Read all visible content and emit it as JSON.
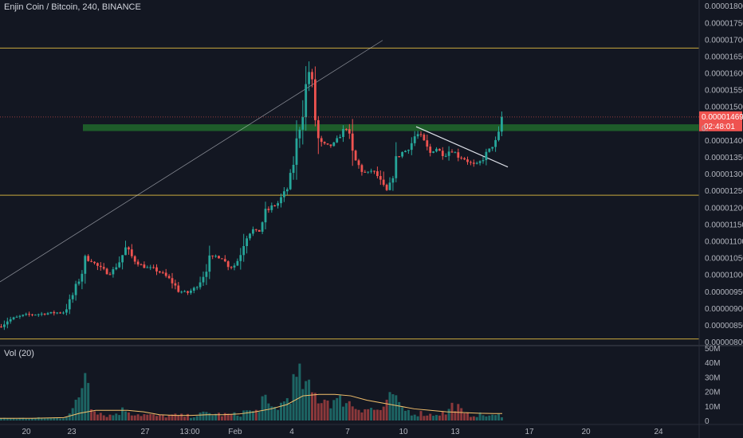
{
  "chart_data": {
    "type": "candlestick",
    "title": "Enjin Coin / Bitcoin, 240, BINANCE",
    "volume_title": "Vol (20)",
    "price_axis": {
      "ticks": [
        "0.00001800",
        "0.00001750",
        "0.00001700",
        "0.00001650",
        "0.00001600",
        "0.00001550",
        "0.00001500",
        "0.00001400",
        "0.00001350",
        "0.00001300",
        "0.00001250",
        "0.00001200",
        "0.00001150",
        "0.00001100",
        "0.00001050",
        "0.00001000",
        "0.00000950",
        "0.00000900",
        "0.00000850",
        "0.00000800"
      ],
      "ylim": [
        7.93e-06,
        1.817e-05
      ]
    },
    "volume_axis": {
      "ticks": [
        {
          "v": 50,
          "t": "50M"
        },
        {
          "v": 40,
          "t": "40M"
        },
        {
          "v": 30,
          "t": "30M"
        },
        {
          "v": 20,
          "t": "20M"
        },
        {
          "v": 10,
          "t": "10M"
        },
        {
          "v": 0,
          "t": "0"
        }
      ],
      "ylim": [
        0,
        50
      ]
    },
    "time_axis": {
      "ticks": [
        "20",
        "23",
        "27",
        "13:00",
        "Feb",
        "4",
        "7",
        "10",
        "13",
        "17",
        "20",
        "24"
      ]
    },
    "current_price_label": "0.00001469",
    "countdown_label": "02:48:01",
    "hidden_price_label": "0.",
    "price_path": [
      [
        0,
        8.45e-06
      ],
      [
        8,
        8.62e-06
      ],
      [
        20,
        8.72e-06
      ],
      [
        32,
        8.8e-06
      ],
      [
        48,
        8.82e-06
      ],
      [
        62,
        8.85e-06
      ],
      [
        80,
        8.88e-06
      ],
      [
        88,
        9.2e-06
      ],
      [
        95,
        9.6e-06
      ],
      [
        102,
        1e-05
      ],
      [
        108,
        1.05e-05
      ],
      [
        115,
        1.04e-05
      ],
      [
        122,
        1.025e-05
      ],
      [
        130,
        1.01e-05
      ],
      [
        140,
        1.005e-05
      ],
      [
        150,
        1.04e-05
      ],
      [
        158,
        1.08e-05
      ],
      [
        166,
        1.05e-05
      ],
      [
        175,
        1.03e-05
      ],
      [
        185,
        1.02e-05
      ],
      [
        195,
        1.015e-05
      ],
      [
        205,
        1e-05
      ],
      [
        215,
        9.8e-06
      ],
      [
        225,
        9.5e-06
      ],
      [
        235,
        9.45e-06
      ],
      [
        245,
        9.6e-06
      ],
      [
        255,
        1e-05
      ],
      [
        262,
        1.04e-05
      ],
      [
        270,
        1.055e-05
      ],
      [
        278,
        1.05e-05
      ],
      [
        285,
        1.03e-05
      ],
      [
        292,
        1.02e-05
      ],
      [
        300,
        1.05e-05
      ],
      [
        308,
        1.12e-05
      ],
      [
        316,
        1.135e-05
      ],
      [
        324,
        1.12e-05
      ],
      [
        332,
        1.18e-05
      ],
      [
        340,
        1.2e-05
      ],
      [
        348,
        1.21e-05
      ],
      [
        356,
        1.24e-05
      ],
      [
        362,
        1.26e-05
      ],
      [
        368,
        1.33e-05
      ],
      [
        374,
        1.42e-05
      ],
      [
        379,
        1.48e-05
      ],
      [
        384,
        1.56e-05
      ],
      [
        388,
        1.61e-05
      ],
      [
        392,
        1.56e-05
      ],
      [
        396,
        1.45e-05
      ],
      [
        400,
        1.39e-05
      ],
      [
        406,
        1.385e-05
      ],
      [
        412,
        1.38e-05
      ],
      [
        420,
        1.39e-05
      ],
      [
        428,
        1.42e-05
      ],
      [
        436,
        1.44e-05
      ],
      [
        442,
        1.35e-05
      ],
      [
        448,
        1.33e-05
      ],
      [
        454,
        1.31e-05
      ],
      [
        460,
        1.3e-05
      ],
      [
        466,
        1.31e-05
      ],
      [
        472,
        1.3e-05
      ],
      [
        478,
        1.27e-05
      ],
      [
        484,
        1.24e-05
      ],
      [
        490,
        1.27e-05
      ],
      [
        496,
        1.33e-05
      ],
      [
        502,
        1.36e-05
      ],
      [
        510,
        1.37e-05
      ],
      [
        516,
        1.39e-05
      ],
      [
        522,
        1.42e-05
      ],
      [
        528,
        1.41e-05
      ],
      [
        534,
        1.38e-05
      ],
      [
        540,
        1.36e-05
      ],
      [
        546,
        1.38e-05
      ],
      [
        552,
        1.365e-05
      ],
      [
        558,
        1.355e-05
      ],
      [
        564,
        1.37e-05
      ],
      [
        570,
        1.365e-05
      ],
      [
        576,
        1.35e-05
      ],
      [
        582,
        1.345e-05
      ],
      [
        588,
        1.335e-05
      ],
      [
        594,
        1.325e-05
      ],
      [
        600,
        1.33e-05
      ],
      [
        606,
        1.345e-05
      ],
      [
        612,
        1.365e-05
      ],
      [
        618,
        1.385e-05
      ],
      [
        624,
        1.4e-05
      ],
      [
        630,
        1.469e-05
      ]
    ],
    "volume_path": [
      [
        0,
        1.5
      ],
      [
        40,
        1.5
      ],
      [
        80,
        2.0
      ],
      [
        92,
        8
      ],
      [
        100,
        15
      ],
      [
        108,
        42
      ],
      [
        114,
        12
      ],
      [
        122,
        7
      ],
      [
        130,
        4
      ],
      [
        140,
        3.5
      ],
      [
        150,
        6
      ],
      [
        158,
        8
      ],
      [
        166,
        5
      ],
      [
        180,
        4
      ],
      [
        200,
        3
      ],
      [
        220,
        3.5
      ],
      [
        240,
        3
      ],
      [
        260,
        5
      ],
      [
        280,
        4
      ],
      [
        300,
        4
      ],
      [
        310,
        7
      ],
      [
        320,
        5
      ],
      [
        330,
        15
      ],
      [
        338,
        8
      ],
      [
        346,
        9
      ],
      [
        356,
        12
      ],
      [
        364,
        20
      ],
      [
        370,
        26
      ],
      [
        378,
        28
      ],
      [
        384,
        22
      ],
      [
        392,
        18
      ],
      [
        400,
        16
      ],
      [
        408,
        15
      ],
      [
        416,
        14
      ],
      [
        424,
        12
      ],
      [
        432,
        16
      ],
      [
        440,
        11
      ],
      [
        448,
        9
      ],
      [
        456,
        9
      ],
      [
        464,
        8
      ],
      [
        472,
        7
      ],
      [
        480,
        8
      ],
      [
        488,
        12
      ],
      [
        492,
        20
      ],
      [
        500,
        9
      ],
      [
        510,
        7
      ],
      [
        520,
        5
      ],
      [
        530,
        5
      ],
      [
        540,
        4
      ],
      [
        550,
        5
      ],
      [
        560,
        5
      ],
      [
        570,
        12
      ],
      [
        576,
        8
      ],
      [
        582,
        4
      ],
      [
        590,
        4
      ],
      [
        600,
        4
      ],
      [
        610,
        3.5
      ],
      [
        620,
        3
      ],
      [
        630,
        4
      ]
    ],
    "volume_ma_path": [
      [
        0,
        1.5
      ],
      [
        40,
        1.5
      ],
      [
        80,
        2
      ],
      [
        100,
        5
      ],
      [
        120,
        7
      ],
      [
        140,
        7
      ],
      [
        160,
        7
      ],
      [
        180,
        6
      ],
      [
        200,
        4
      ],
      [
        220,
        3.5
      ],
      [
        240,
        3.5
      ],
      [
        260,
        4
      ],
      [
        280,
        4
      ],
      [
        300,
        4.5
      ],
      [
        320,
        6
      ],
      [
        340,
        8
      ],
      [
        360,
        11
      ],
      [
        380,
        17
      ],
      [
        400,
        18
      ],
      [
        420,
        18
      ],
      [
        440,
        17
      ],
      [
        460,
        14
      ],
      [
        480,
        12
      ],
      [
        500,
        10
      ],
      [
        520,
        8
      ],
      [
        540,
        7
      ],
      [
        560,
        6
      ],
      [
        580,
        5.5
      ],
      [
        600,
        5
      ],
      [
        620,
        4.8
      ],
      [
        630,
        4.8
      ]
    ],
    "horizontal_levels": [
      1.674e-05,
      1.236e-05,
      8.08e-06
    ],
    "resistance_zone": [
      1.447e-05,
      1.427e-05
    ],
    "trend_lines": [
      {
        "from": [
          0,
          9.78e-06
        ],
        "to": [
          480,
          1.697e-05
        ]
      },
      {
        "from": [
          522,
          1.44e-05
        ],
        "to": [
          637,
          1.32e-05
        ]
      }
    ],
    "colors": {
      "background": "#131722",
      "up": "#26a69a",
      "down": "#ef5350",
      "up_volume": "#26a69a",
      "down_volume": "#ef5350",
      "level_line": "#c9a93e",
      "resistance_zone": "#1e5c2a",
      "trend_line": "#e0e3eb",
      "volume_ma": "#f5c16c",
      "axis_text": "#b2b5be",
      "price_tag": "#ef5350"
    }
  }
}
